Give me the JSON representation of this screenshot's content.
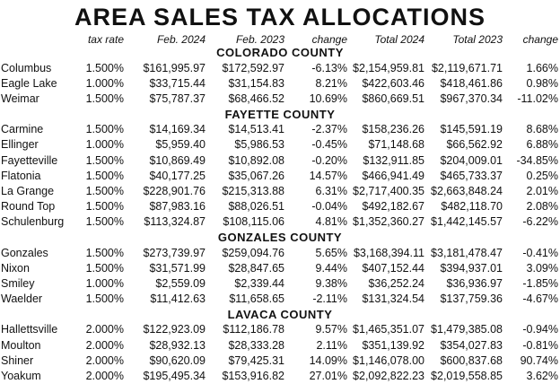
{
  "title": "AREA SALES TAX ALLOCATIONS",
  "headers": {
    "rate": "tax rate",
    "feb24": "Feb. 2024",
    "feb23": "Feb. 2023",
    "change1": "change",
    "total24": "Total 2024",
    "total23": "Total 2023",
    "change2": "change"
  },
  "counties": [
    {
      "name": "COLORADO COUNTY",
      "rows": [
        {
          "city": "Columbus",
          "rate": "1.500%",
          "feb24": "$161,995.97",
          "feb23": "$172,592.97",
          "change1": "-6.13%",
          "total24": "$2,154,959.81",
          "total23": "$2,119,671.71",
          "change2": "1.66%"
        },
        {
          "city": "Eagle Lake",
          "rate": "1.000%",
          "feb24": "$33,715.44",
          "feb23": "$31,154.83",
          "change1": "8.21%",
          "total24": "$422,603.46",
          "total23": "$418,461.86",
          "change2": "0.98%"
        },
        {
          "city": "Weimar",
          "rate": "1.500%",
          "feb24": "$75,787.37",
          "feb23": "$68,466.52",
          "change1": "10.69%",
          "total24": "$860,669.51",
          "total23": "$967,370.34",
          "change2": "-11.02%"
        }
      ]
    },
    {
      "name": "FAYETTE COUNTY",
      "rows": [
        {
          "city": "Carmine",
          "rate": "1.500%",
          "feb24": "$14,169.34",
          "feb23": "$14,513.41",
          "change1": "-2.37%",
          "total24": "$158,236.26",
          "total23": "$145,591.19",
          "change2": "8.68%"
        },
        {
          "city": "Ellinger",
          "rate": "1.000%",
          "feb24": "$5,959.40",
          "feb23": "$5,986.53",
          "change1": "-0.45%",
          "total24": "$71,148.68",
          "total23": "$66,562.92",
          "change2": "6.88%"
        },
        {
          "city": "Fayetteville",
          "rate": "1.500%",
          "feb24": "$10,869.49",
          "feb23": "$10,892.08",
          "change1": "-0.20%",
          "total24": "$132,911.85",
          "total23": "$204,009.01",
          "change2": "-34.85%"
        },
        {
          "city": "Flatonia",
          "rate": "1.500%",
          "feb24": "$40,177.25",
          "feb23": "$35,067.26",
          "change1": "14.57%",
          "total24": "$466,941.49",
          "total23": "$465,733.37",
          "change2": "0.25%"
        },
        {
          "city": "La Grange",
          "rate": "1.500%",
          "feb24": "$228,901.76",
          "feb23": "$215,313.88",
          "change1": "6.31%",
          "total24": "$2,717,400.35",
          "total23": "$2,663,848.24",
          "change2": "2.01%"
        },
        {
          "city": "Round Top",
          "rate": "1.500%",
          "feb24": "$87,983.16",
          "feb23": "$88,026.51",
          "change1": "-0.04%",
          "total24": "$492,182.67",
          "total23": "$482,118.70",
          "change2": "2.08%"
        },
        {
          "city": "Schulenburg",
          "rate": "1.500%",
          "feb24": "$113,324.87",
          "feb23": "$108,115.06",
          "change1": "4.81%",
          "total24": "$1,352,360.27",
          "total23": "$1,442,145.57",
          "change2": "-6.22%"
        }
      ]
    },
    {
      "name": "GONZALES COUNTY",
      "rows": [
        {
          "city": "Gonzales",
          "rate": "1.500%",
          "feb24": "$273,739.97",
          "feb23": "$259,094.76",
          "change1": "5.65%",
          "total24": "$3,168,394.11",
          "total23": "$3,181,478.47",
          "change2": "-0.41%"
        },
        {
          "city": "Nixon",
          "rate": "1.500%",
          "feb24": "$31,571.99",
          "feb23": "$28,847.65",
          "change1": "9.44%",
          "total24": "$407,152.44",
          "total23": "$394,937.01",
          "change2": "3.09%"
        },
        {
          "city": "Smiley",
          "rate": "1.000%",
          "feb24": "$2,559.09",
          "feb23": "$2,339.44",
          "change1": "9.38%",
          "total24": "$36,252.24",
          "total23": "$36,936.97",
          "change2": "-1.85%"
        },
        {
          "city": "Waelder",
          "rate": "1.500%",
          "feb24": "$11,412.63",
          "feb23": "$11,658.65",
          "change1": "-2.11%",
          "total24": "$131,324.54",
          "total23": "$137,759.36",
          "change2": "-4.67%"
        }
      ]
    },
    {
      "name": "LAVACA COUNTY",
      "rows": [
        {
          "city": "Hallettsville",
          "rate": "2.000%",
          "feb24": "$122,923.09",
          "feb23": "$112,186.78",
          "change1": "9.57%",
          "total24": "$1,465,351.07",
          "total23": "$1,479,385.08",
          "change2": "-0.94%"
        },
        {
          "city": "Moulton",
          "rate": "2.000%",
          "feb24": "$28,932.13",
          "feb23": "$28,333.28",
          "change1": "2.11%",
          "total24": "$351,139.92",
          "total23": "$354,027.83",
          "change2": "-0.81%"
        },
        {
          "city": "Shiner",
          "rate": "2.000%",
          "feb24": "$90,620.09",
          "feb23": "$79,425.31",
          "change1": "14.09%",
          "total24": "$1,146,078.00",
          "total23": "$600,837.68",
          "change2": "90.74%"
        },
        {
          "city": "Yoakum",
          "rate": "2.000%",
          "feb24": "$195,495.34",
          "feb23": "$153,916.82",
          "change1": "27.01%",
          "total24": "$2,092,822.23",
          "total23": "$2,019,558.85",
          "change2": "3.62%"
        }
      ]
    }
  ]
}
